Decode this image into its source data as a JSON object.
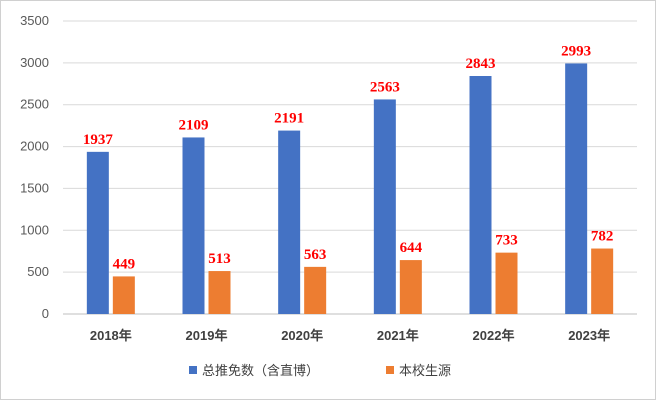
{
  "chart_data": {
    "type": "bar",
    "title": "",
    "xlabel": "",
    "ylabel": "",
    "categories": [
      "2018年",
      "2019年",
      "2020年",
      "2021年",
      "2022年",
      "2023年"
    ],
    "series": [
      {
        "name": "总推免数（含直博）",
        "values": [
          1937,
          2109,
          2191,
          2563,
          2843,
          2993
        ],
        "color": "#4472c4"
      },
      {
        "name": "本校生源",
        "values": [
          449,
          513,
          563,
          644,
          733,
          782
        ],
        "color": "#ed7d31"
      }
    ],
    "ylim": [
      0,
      3500
    ],
    "yticks": [
      0,
      500,
      1000,
      1500,
      2000,
      2500,
      3000,
      3500
    ],
    "grid": true,
    "legend_position": "bottom",
    "data_label_color": "#ff0000"
  }
}
